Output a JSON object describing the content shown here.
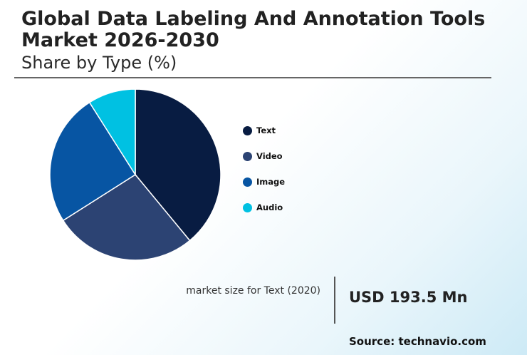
{
  "header": {
    "title": "Global Data Labeling And Annotation Tools Market 2026-2030",
    "subtitle": "Share by Type (%)"
  },
  "chart_data": {
    "type": "pie",
    "title": "Share by Type (%)",
    "categories": [
      "Text",
      "Video",
      "Image",
      "Audio"
    ],
    "values": [
      39,
      27,
      25,
      9
    ],
    "colors": [
      "#081c42",
      "#2c4373",
      "#0755a3",
      "#00c1e2"
    ],
    "legend_position": "right"
  },
  "legend": {
    "items": [
      {
        "label": "Text",
        "color": "#081c42"
      },
      {
        "label": "Video",
        "color": "#2c4373"
      },
      {
        "label": "Image",
        "color": "#0755a3"
      },
      {
        "label": "Audio",
        "color": "#00c1e2"
      }
    ]
  },
  "metric": {
    "label": "market size for Text (2020)",
    "value": "USD 193.5 Mn"
  },
  "source": "Source: technavio.com"
}
